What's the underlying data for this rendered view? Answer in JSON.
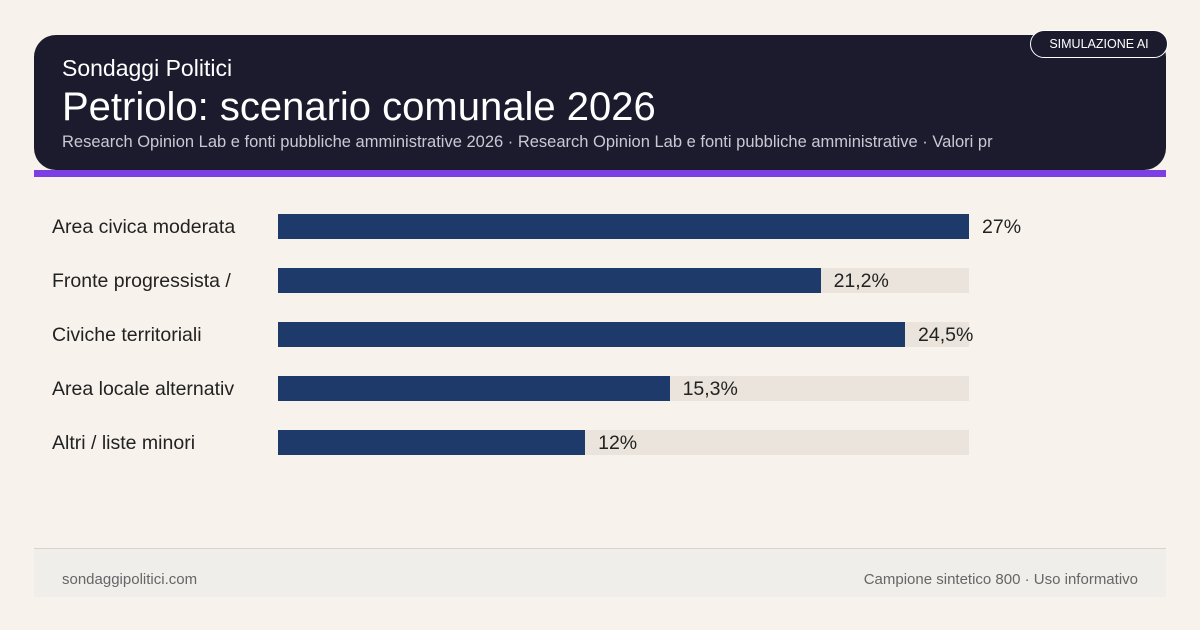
{
  "header": {
    "kicker": "Sondaggi Politici",
    "title": "Petriolo: scenario comunale 2026",
    "subtitle": "Research Opinion Lab e fonti pubbliche amministrative 2026 · Research Opinion Lab e fonti pubbliche amministrative · Valori pr",
    "badge": "SIMULAZIONE AI"
  },
  "colors": {
    "bar": "#1d3a6b",
    "track": "#ebe4dc",
    "accent": "#7b3fe4",
    "header_bg": "#1c1b2e"
  },
  "chart_data": {
    "type": "bar",
    "orientation": "horizontal",
    "categories": [
      "Area civica moderata",
      "Fronte progressista /",
      "Civiche territoriali",
      "Area locale alternativ",
      "Altri / liste minori"
    ],
    "values": [
      27,
      21.2,
      24.5,
      15.3,
      12
    ],
    "value_labels": [
      "27%",
      "21,2%",
      "24,5%",
      "15,3%",
      "12%"
    ],
    "xlim": [
      0,
      27
    ],
    "grid": false
  },
  "footer": {
    "left": "sondaggipolitici.com",
    "right": "Campione sintetico 800 · Uso informativo"
  }
}
